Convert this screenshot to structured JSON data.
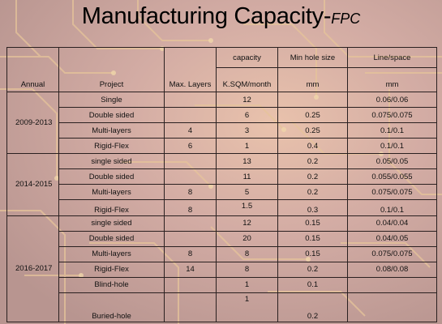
{
  "title": {
    "main": "Manufacturing Capacity-",
    "sub": "FPC"
  },
  "headers": {
    "annual": "Annual",
    "project": "Project",
    "max_layers": "Max. Layers",
    "capacity_top": "capacity",
    "capacity_unit": "K.SQM/month",
    "min_hole_top": "Min hole size",
    "min_hole_unit": "mm",
    "line_space_top": "Line/space",
    "line_space_unit": "mm"
  },
  "groups": [
    {
      "annual": "2009-2013",
      "rows": [
        {
          "project": "Single",
          "layers": "",
          "capacity": "12",
          "hole": "",
          "line": "0.06/0.06"
        },
        {
          "project": "Double sided",
          "layers": "",
          "capacity": "6",
          "hole": "0.25",
          "line": "0.075/0.075"
        },
        {
          "project": "Multi-layers",
          "layers": "4",
          "capacity": "3",
          "hole": "0.25",
          "line": "0.1/0.1"
        },
        {
          "project": "Rigid-Flex",
          "layers": "6",
          "capacity": "1",
          "hole": "0.4",
          "line": "0.1/0.1"
        }
      ]
    },
    {
      "annual": "2014-2015",
      "rows": [
        {
          "project": "single sided",
          "layers": "",
          "capacity": "13",
          "hole": "0.2",
          "line": "0.05/0.05"
        },
        {
          "project": "Double sided",
          "layers": "",
          "capacity": "11",
          "hole": "0.2",
          "line": "0.055/0.055"
        },
        {
          "project": "Multi-layers",
          "layers": "8",
          "capacity": "5",
          "hole": "0.2",
          "line": "0.075/0.075"
        },
        {
          "project": "Rigid-Flex",
          "layers": "8",
          "capacity": "1.5",
          "hole": "0.3",
          "line": "0.1/0.1"
        }
      ]
    },
    {
      "annual": "2016-2017",
      "rows": [
        {
          "project": "single sided",
          "layers": "",
          "capacity": "12",
          "hole": "0.15",
          "line": "0.04/0.04"
        },
        {
          "project": "Double sided",
          "layers": "",
          "capacity": "20",
          "hole": "0.15",
          "line": "0.04/0.05"
        },
        {
          "project": "Multi-layers",
          "layers": "8",
          "capacity": "8",
          "hole": "0.15",
          "line": "0.075/0.075"
        },
        {
          "project": "Rigid-Flex",
          "layers": "14",
          "capacity": "8",
          "hole": "0.2",
          "line": "0.08/0.08"
        },
        {
          "project": "Blind-hole",
          "layers": "",
          "capacity": "1",
          "hole": "0.1",
          "line": ""
        },
        {
          "project": "Buried-hole",
          "layers": "",
          "capacity": "1",
          "hole": "0.2",
          "line": ""
        }
      ]
    }
  ]
}
